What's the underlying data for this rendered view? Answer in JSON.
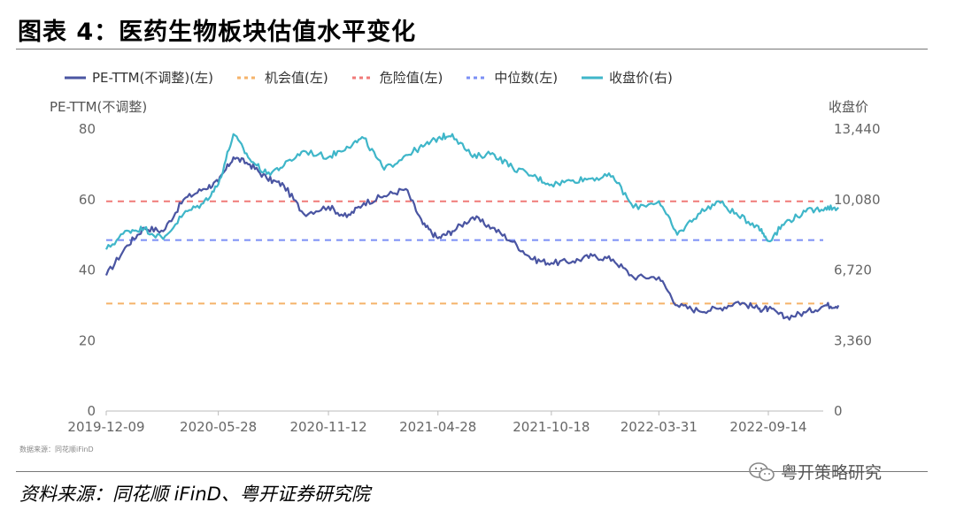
{
  "title": "图表 4：医药生物板块估值水平变化",
  "legend": [
    {
      "label": "PE-TTM(不调整)(左)",
      "color": "#4a55a2",
      "style": "solid"
    },
    {
      "label": "机会值(左)",
      "color": "#f5b36a",
      "style": "dashed"
    },
    {
      "label": "危险值(左)",
      "color": "#f07a78",
      "style": "dashed"
    },
    {
      "label": "中位数(左)",
      "color": "#7b8ff5",
      "style": "dashed"
    },
    {
      "label": "收盘价(右)",
      "color": "#3fb6c9",
      "style": "solid"
    }
  ],
  "left_axis_title": "PE-TTM(不调整)",
  "right_axis_title": "收盘价",
  "source_small": "数据来源：同花顺iFinD",
  "source": "资料来源：同花顺 iFinD、粤开证券研究院",
  "wechat_label": "粤开策略研究",
  "chart_data": {
    "type": "line",
    "x_ticks": [
      "2019-12-09",
      "2020-05-28",
      "2020-11-12",
      "2021-04-28",
      "2021-10-18",
      "2022-03-31",
      "2022-09-14"
    ],
    "left_ticks": [
      "0",
      "20",
      "40",
      "60",
      "80"
    ],
    "right_ticks": [
      "0",
      "3,360",
      "6,720",
      "10,080",
      "13,440"
    ],
    "ylim_left": [
      0,
      80
    ],
    "ylim_right": [
      0,
      13440
    ],
    "reference_lines": [
      {
        "name": "机会值(左)",
        "value": 30.5,
        "color": "#f5b36a"
      },
      {
        "name": "危险值(左)",
        "value": 59.5,
        "color": "#f07a78"
      },
      {
        "name": "中位数(左)",
        "value": 48.5,
        "color": "#7b8ff5"
      }
    ],
    "series": [
      {
        "name": "PE-TTM(不调整)(左)",
        "axis": "left",
        "color": "#4a55a2",
        "x": [
          "2019-12-09",
          "2020-01-10",
          "2020-02-05",
          "2020-03-05",
          "2020-04-05",
          "2020-05-05",
          "2020-05-28",
          "2020-06-20",
          "2020-07-15",
          "2020-08-10",
          "2020-09-05",
          "2020-10-05",
          "2020-11-12",
          "2020-12-10",
          "2021-01-05",
          "2021-02-05",
          "2021-03-10",
          "2021-04-05",
          "2021-04-28",
          "2021-05-20",
          "2021-06-20",
          "2021-07-20",
          "2021-08-20",
          "2021-09-20",
          "2021-10-18",
          "2021-11-20",
          "2021-12-20",
          "2022-01-20",
          "2022-02-20",
          "2022-03-31",
          "2022-04-28",
          "2022-05-30",
          "2022-06-30",
          "2022-07-30",
          "2022-08-30",
          "2022-09-14",
          "2022-10-10",
          "2022-11-10",
          "2022-12-10",
          "2022-12-30"
        ],
        "values": [
          38.5,
          47,
          52,
          51,
          60,
          63,
          65,
          72,
          70,
          66,
          64,
          56,
          58,
          55,
          59,
          61,
          63,
          53,
          49,
          51,
          55,
          52,
          48,
          43,
          42,
          42.5,
          44,
          43,
          38,
          38,
          30,
          28.5,
          29,
          31,
          29,
          29,
          26.5,
          28,
          30,
          30
        ]
      },
      {
        "name": "收盘价(右)",
        "axis": "right",
        "color": "#3fb6c9",
        "x": [
          "2019-12-09",
          "2020-01-10",
          "2020-02-05",
          "2020-03-05",
          "2020-04-05",
          "2020-05-05",
          "2020-05-28",
          "2020-06-20",
          "2020-07-15",
          "2020-08-10",
          "2020-09-05",
          "2020-10-05",
          "2020-11-12",
          "2020-12-10",
          "2021-01-05",
          "2021-02-05",
          "2021-03-10",
          "2021-04-05",
          "2021-04-28",
          "2021-05-20",
          "2021-06-20",
          "2021-07-20",
          "2021-08-20",
          "2021-09-20",
          "2021-10-18",
          "2021-11-20",
          "2021-12-20",
          "2022-01-20",
          "2022-02-20",
          "2022-03-31",
          "2022-04-28",
          "2022-05-30",
          "2022-06-30",
          "2022-07-30",
          "2022-08-30",
          "2022-09-14",
          "2022-10-10",
          "2022-11-10",
          "2022-12-10",
          "2022-12-30"
        ],
        "values": [
          7700,
          8600,
          8700,
          8200,
          9400,
          9900,
          10800,
          13200,
          12000,
          11300,
          11700,
          12400,
          12100,
          12600,
          13000,
          11500,
          12200,
          12600,
          13000,
          13200,
          12100,
          12300,
          11600,
          11200,
          10800,
          11000,
          11100,
          11200,
          9700,
          10000,
          8400,
          9400,
          10000,
          9300,
          8800,
          8100,
          9000,
          9500,
          9700,
          9700
        ]
      }
    ]
  }
}
